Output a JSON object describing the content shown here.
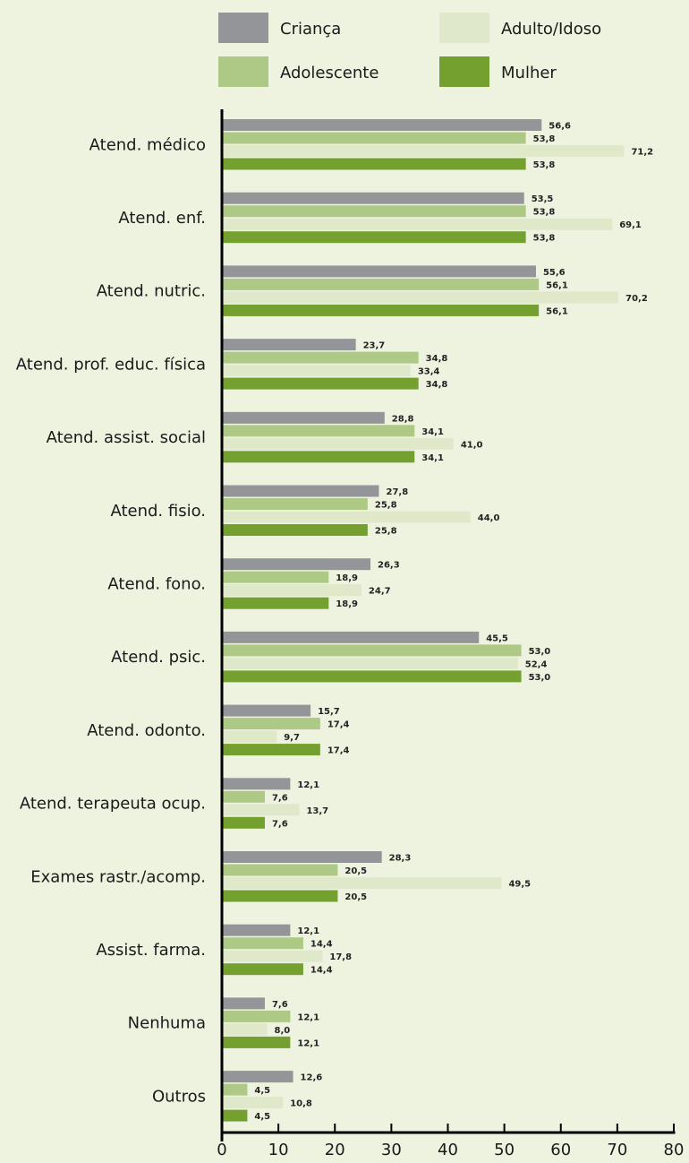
{
  "chart_data": {
    "type": "bar",
    "orientation": "horizontal",
    "categories": [
      "Atend. médico",
      "Atend. enf.",
      "Atend. nutric.",
      "Atend. prof. educ. física",
      "Atend. assist. social",
      "Atend. fisio.",
      "Atend. fono.",
      "Atend. psic.",
      "Atend. odonto.",
      "Atend. terapeuta ocup.",
      "Exames rastr./acomp.",
      "Assist. farma.",
      "Nenhuma",
      "Outros"
    ],
    "series": [
      {
        "name": "Criança",
        "color": "#939598",
        "values": [
          56.6,
          53.5,
          55.6,
          23.7,
          28.8,
          27.8,
          26.3,
          45.5,
          15.7,
          12.1,
          28.3,
          12.1,
          7.6,
          12.6
        ],
        "labels": [
          "56,6",
          "53,5",
          "55,6",
          "23,7",
          "28,8",
          "27,8",
          "26,3",
          "45,5",
          "15,7",
          "12,1",
          "28,3",
          "12,1",
          "7,6",
          "12,6"
        ]
      },
      {
        "name": "Adolescente",
        "color": "#aec985",
        "values": [
          53.8,
          53.8,
          56.1,
          34.8,
          34.1,
          25.8,
          18.9,
          53.0,
          17.4,
          7.6,
          20.5,
          14.4,
          12.1,
          4.5
        ],
        "labels": [
          "53,8",
          "53,8",
          "56,1",
          "34,8",
          "34,1",
          "25,8",
          "18,9",
          "53,0",
          "17,4",
          "7,6",
          "20,5",
          "14,4",
          "12,1",
          "4,5"
        ]
      },
      {
        "name": "Adulto/Idoso",
        "color": "#dfe8c8",
        "values": [
          71.2,
          69.1,
          70.2,
          33.4,
          41.0,
          44.0,
          24.7,
          52.4,
          9.7,
          13.7,
          49.5,
          17.8,
          8.0,
          10.8
        ],
        "labels": [
          "71,2",
          "69,1",
          "70,2",
          "33,4",
          "41,0",
          "44,0",
          "24,7",
          "52,4",
          "9,7",
          "13,7",
          "49,5",
          "17,8",
          "8,0",
          "10,8"
        ]
      },
      {
        "name": "Mulher",
        "color": "#73a02e",
        "values": [
          53.8,
          53.8,
          56.1,
          34.8,
          34.1,
          25.8,
          18.9,
          53.0,
          17.4,
          7.6,
          20.5,
          14.4,
          12.1,
          4.5
        ],
        "labels": [
          "53,8",
          "53,8",
          "56,1",
          "34,8",
          "34,1",
          "25,8",
          "18,9",
          "53,0",
          "17,4",
          "7,6",
          "20,5",
          "14,4",
          "12,1",
          "4,5"
        ]
      }
    ],
    "x_ticks": [
      "0",
      "10",
      "20",
      "30",
      "40",
      "50",
      "60",
      "70",
      "80"
    ],
    "xlim": [
      0,
      80
    ],
    "grid": false,
    "legend_position": "top"
  }
}
